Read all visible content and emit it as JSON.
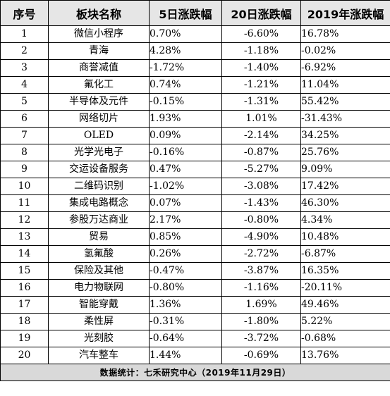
{
  "headers": [
    "序号",
    "板块名称",
    "5日涨跌幅",
    "20日涨跌幅",
    "2019年涨跌幅"
  ],
  "rows": [
    {
      "seq": "1",
      "name": "微信小程序",
      "d5": "0.70%",
      "d20": "-6.60%",
      "y2019": "16.78%"
    },
    {
      "seq": "2",
      "name": "青海",
      "d5": "4.28%",
      "d20": "-1.18%",
      "y2019": "-0.02%"
    },
    {
      "seq": "3",
      "name": "商誉减值",
      "d5": "-1.72%",
      "d20": "-1.40%",
      "y2019": "-6.92%"
    },
    {
      "seq": "4",
      "name": "氟化工",
      "d5": "0.74%",
      "d20": "-1.21%",
      "y2019": "11.04%"
    },
    {
      "seq": "5",
      "name": "半导体及元件",
      "d5": "-0.15%",
      "d20": "-1.31%",
      "y2019": "55.42%"
    },
    {
      "seq": "6",
      "name": "网络切片",
      "d5": "1.93%",
      "d20": "1.01%",
      "y2019": "-31.43%"
    },
    {
      "seq": "7",
      "name": "OLED",
      "d5": "0.09%",
      "d20": "-2.14%",
      "y2019": "34.25%"
    },
    {
      "seq": "8",
      "name": "光学光电子",
      "d5": "-0.16%",
      "d20": "-0.87%",
      "y2019": "25.76%"
    },
    {
      "seq": "9",
      "name": "交运设备服务",
      "d5": "0.47%",
      "d20": "-5.27%",
      "y2019": "9.09%"
    },
    {
      "seq": "10",
      "name": "二维码识别",
      "d5": "-1.02%",
      "d20": "-3.08%",
      "y2019": "17.42%"
    },
    {
      "seq": "11",
      "name": "集成电路概念",
      "d5": "0.07%",
      "d20": "-1.43%",
      "y2019": "46.30%"
    },
    {
      "seq": "12",
      "name": "参股万达商业",
      "d5": "2.17%",
      "d20": "-0.80%",
      "y2019": "4.34%"
    },
    {
      "seq": "13",
      "name": "贸易",
      "d5": "0.85%",
      "d20": "-4.90%",
      "y2019": "10.48%"
    },
    {
      "seq": "14",
      "name": "氢氟酸",
      "d5": "0.26%",
      "d20": "-2.72%",
      "y2019": "-6.87%"
    },
    {
      "seq": "15",
      "name": "保险及其他",
      "d5": "-0.47%",
      "d20": "-3.87%",
      "y2019": "16.35%"
    },
    {
      "seq": "16",
      "name": "电力物联网",
      "d5": "-0.80%",
      "d20": "-1.16%",
      "y2019": "-20.11%"
    },
    {
      "seq": "17",
      "name": "智能穿戴",
      "d5": "1.36%",
      "d20": "1.69%",
      "y2019": "49.46%"
    },
    {
      "seq": "18",
      "name": "柔性屏",
      "d5": "-0.31%",
      "d20": "-1.80%",
      "y2019": "5.22%"
    },
    {
      "seq": "19",
      "name": "光刻胶",
      "d5": "-0.64%",
      "d20": "-3.72%",
      "y2019": "-0.68%"
    },
    {
      "seq": "20",
      "name": "汽车整车",
      "d5": "1.44%",
      "d20": "-0.69%",
      "y2019": "13.76%"
    }
  ],
  "footer": "数据统计：七禾研究中心（2019年11月29日）"
}
